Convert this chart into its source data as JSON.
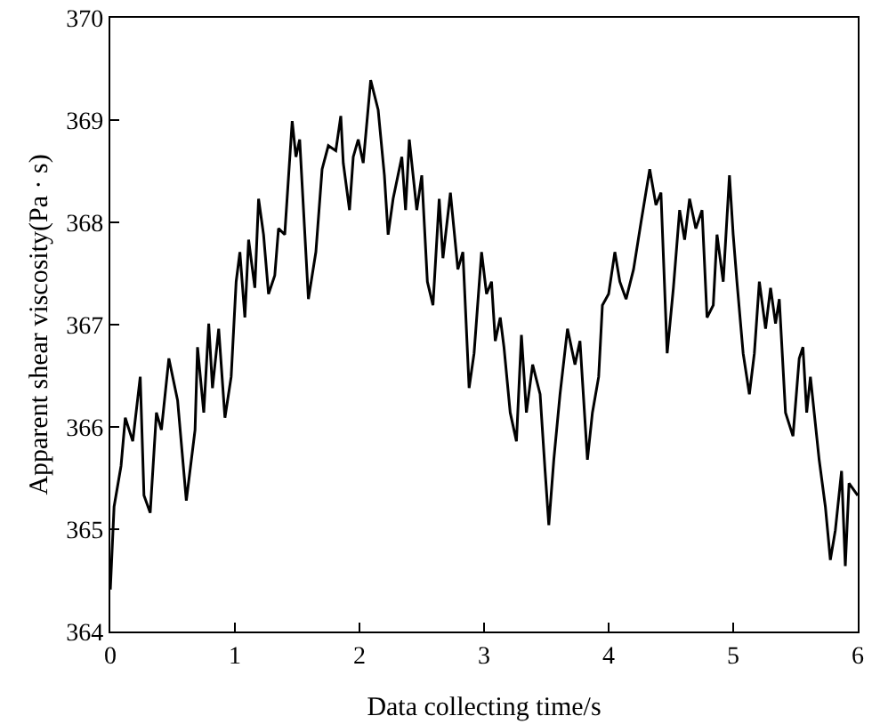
{
  "chart_data": {
    "type": "line",
    "xlabel": "Data collecting time/s",
    "ylabel": "Apparent shear viscosity(Pa · s)",
    "xlim": [
      0,
      6
    ],
    "ylim": [
      364,
      370
    ],
    "xticks": [
      0,
      1,
      2,
      3,
      4,
      5,
      6
    ],
    "yticks": [
      364,
      365,
      366,
      367,
      368,
      369,
      370
    ],
    "marker": "none",
    "line_style": "solid",
    "series": [
      {
        "color": "#000000",
        "x": [
          0,
          0.03,
          0.086,
          0.12,
          0.18,
          0.24,
          0.27,
          0.32,
          0.37,
          0.41,
          0.47,
          0.54,
          0.61,
          0.68,
          0.7,
          0.75,
          0.79,
          0.82,
          0.87,
          0.92,
          0.97,
          1.01,
          1.04,
          1.08,
          1.11,
          1.16,
          1.19,
          1.23,
          1.27,
          1.32,
          1.35,
          1.4,
          1.46,
          1.49,
          1.52,
          1.59,
          1.65,
          1.7,
          1.75,
          1.81,
          1.85,
          1.87,
          1.92,
          1.95,
          1.99,
          2.03,
          2.09,
          2.15,
          2.2,
          2.23,
          2.27,
          2.34,
          2.37,
          2.4,
          2.46,
          2.5,
          2.545,
          2.59,
          2.64,
          2.67,
          2.73,
          2.79,
          2.83,
          2.88,
          2.92,
          2.98,
          3.02,
          3.06,
          3.09,
          3.13,
          3.16,
          3.21,
          3.26,
          3.3,
          3.34,
          3.39,
          3.45,
          3.49,
          3.52,
          3.56,
          3.61,
          3.67,
          3.73,
          3.77,
          3.83,
          3.87,
          3.92,
          3.95,
          4.0,
          4.05,
          4.09,
          4.14,
          4.2,
          4.26,
          4.33,
          4.38,
          4.42,
          4.47,
          4.52,
          4.57,
          4.61,
          4.65,
          4.7,
          4.75,
          4.79,
          4.84,
          4.87,
          4.92,
          4.97,
          5.0,
          5.03,
          5.08,
          5.13,
          5.17,
          5.21,
          5.26,
          5.3,
          5.34,
          5.37,
          5.42,
          5.48,
          5.53,
          5.56,
          5.59,
          5.62,
          5.69,
          5.74,
          5.78,
          5.82,
          5.87,
          5.9,
          5.93,
          6.0
        ],
        "values": [
          364.41,
          365.22,
          365.62,
          366.09,
          365.86,
          366.49,
          365.33,
          365.16,
          366.14,
          365.97,
          366.67,
          366.26,
          365.28,
          365.97,
          366.78,
          366.14,
          367.01,
          366.38,
          366.96,
          366.09,
          366.49,
          367.42,
          367.71,
          367.07,
          367.83,
          367.36,
          368.23,
          367.88,
          367.3,
          367.48,
          367.94,
          367.88,
          368.99,
          368.64,
          368.81,
          367.25,
          367.71,
          368.52,
          368.75,
          368.7,
          369.04,
          368.58,
          368.12,
          368.64,
          368.81,
          368.58,
          369.39,
          369.1,
          368.46,
          367.88,
          368.23,
          368.64,
          368.12,
          368.81,
          368.12,
          368.46,
          367.42,
          367.19,
          368.23,
          367.65,
          368.29,
          367.54,
          367.71,
          366.38,
          366.72,
          367.71,
          367.3,
          367.42,
          366.84,
          367.07,
          366.78,
          366.14,
          365.86,
          366.9,
          366.14,
          366.61,
          366.32,
          365.57,
          365.04,
          365.68,
          366.32,
          366.96,
          366.61,
          366.84,
          365.68,
          366.14,
          366.49,
          367.19,
          367.3,
          367.71,
          367.42,
          367.25,
          367.54,
          368.0,
          368.52,
          368.17,
          368.29,
          366.72,
          367.36,
          368.12,
          367.83,
          368.23,
          367.94,
          368.12,
          367.07,
          367.19,
          367.88,
          367.42,
          368.46,
          367.88,
          367.42,
          366.72,
          366.32,
          366.72,
          367.42,
          366.96,
          367.36,
          367.01,
          367.25,
          366.14,
          365.91,
          366.67,
          366.78,
          366.14,
          366.49,
          365.68,
          365.22,
          364.7,
          364.99,
          365.57,
          364.64,
          365.45,
          365.33
        ]
      }
    ]
  }
}
